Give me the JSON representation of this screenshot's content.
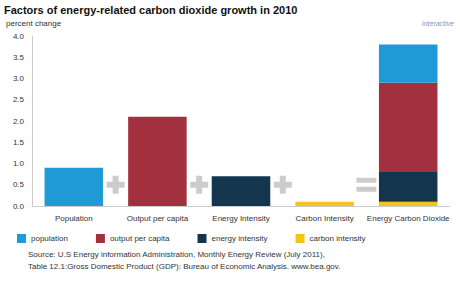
{
  "chart_data": {
    "type": "bar",
    "title": "Factors of energy-related carbon dioxide growth in 2010",
    "y_label": "percent change",
    "annotations": [
      "interactive"
    ],
    "source": [
      "Source: U.S Energy information Administration, Monthly Energy Review (July 2011),",
      "Table 12.1:Gross Domestic Product (GDP): Bureau of Economic Analysis. www.bea.gov."
    ],
    "categories": [
      "Population",
      "Output per capita",
      "Energy Intensity",
      "Carbon Intensity",
      "Energy Carbon Dioxide"
    ],
    "series": [
      {
        "name": "population",
        "color": "#1f9ad6",
        "values": [
          0.9,
          null,
          null,
          null,
          0.9
        ]
      },
      {
        "name": "output per capita",
        "color": "#a3303f",
        "values": [
          null,
          2.1,
          null,
          null,
          2.1
        ]
      },
      {
        "name": "energy intensity",
        "color": "#14354e",
        "values": [
          null,
          null,
          0.7,
          null,
          0.7
        ]
      },
      {
        "name": "carbon intensity",
        "color": "#f4c41a",
        "values": [
          null,
          null,
          null,
          0.1,
          0.1
        ]
      }
    ],
    "stacked": true,
    "ylim": [
      0,
      4
    ],
    "yticks": [
      {
        "value": 0,
        "label": "0.0"
      },
      {
        "value": 0.5,
        "label": "0.5"
      },
      {
        "value": 1,
        "label": "1.0"
      },
      {
        "value": 1.5,
        "label": "1.5"
      },
      {
        "value": 2,
        "label": "2.0"
      },
      {
        "value": 2.5,
        "label": "2.5"
      },
      {
        "value": 3,
        "label": "3.0"
      },
      {
        "value": 3.5,
        "label": "3.5"
      },
      {
        "value": 4,
        "label": "4.0"
      }
    ],
    "grid": false,
    "legend": "bottom"
  }
}
